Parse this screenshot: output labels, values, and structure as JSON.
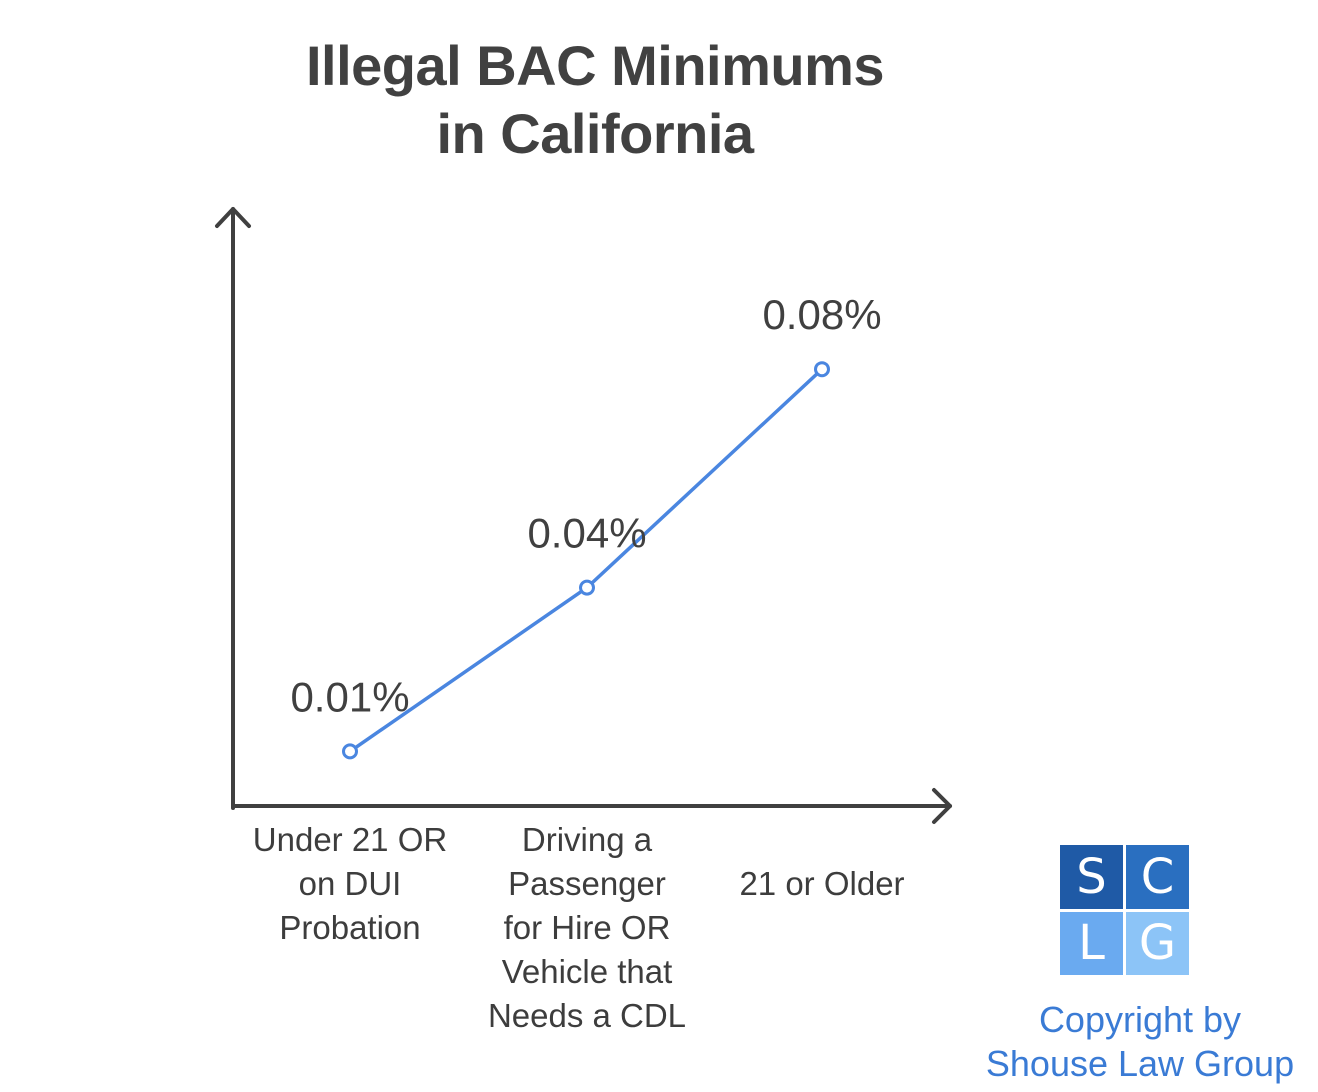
{
  "chart_data": {
    "type": "line",
    "title_lines": [
      "Illegal BAC Minimums",
      "in California"
    ],
    "xlabel": "",
    "ylabel": "",
    "categories": [
      [
        "Under 21 OR",
        "on DUI",
        "Probation"
      ],
      [
        "Driving a",
        "Passenger",
        "for Hire OR",
        "Vehicle that",
        "Needs a CDL"
      ],
      [
        "21 or Older"
      ]
    ],
    "values": [
      0.01,
      0.04,
      0.08
    ],
    "data_labels": [
      "0.01%",
      "0.04%",
      "0.08%"
    ],
    "ylim": [
      0,
      0.1
    ],
    "grid": false,
    "line_color": "#4a86e0",
    "axis_color": "#404040"
  },
  "logo": {
    "letters": [
      "S",
      "C",
      "L",
      "G"
    ],
    "colors": [
      "#1f5aa6",
      "#2a6fc0",
      "#6aaaf0",
      "#8cc4f7"
    ]
  },
  "copyright": {
    "lines": [
      "Copyright by",
      "Shouse Law Group"
    ],
    "color": "#3a7bd5"
  }
}
